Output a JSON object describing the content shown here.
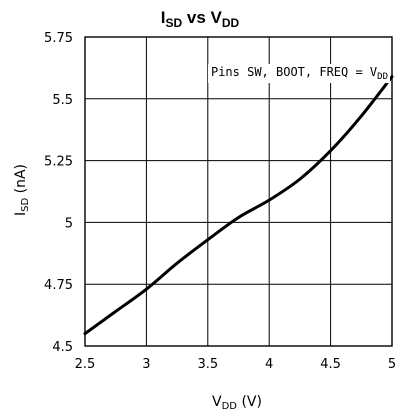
{
  "chart_data": {
    "type": "line",
    "title": {
      "main_1": "I",
      "sub_1": "SD",
      "mid": " vs V",
      "sub_2": "DD"
    },
    "annotation": {
      "text": "Pins SW, BOOT, FREQ = V",
      "sub": "DD"
    },
    "xlabel": {
      "main": "V",
      "sub": "DD",
      "unit": " (V)"
    },
    "ylabel": {
      "main": "I",
      "sub": "SD",
      "unit": " (nA)"
    },
    "xlim": [
      2.5,
      5
    ],
    "ylim": [
      4.5,
      5.75
    ],
    "x_ticks": [
      2.5,
      3,
      3.5,
      4,
      4.5,
      5
    ],
    "x_tick_labels": [
      "2.5",
      "3",
      "3.5",
      "4",
      "4.5",
      "5"
    ],
    "y_ticks": [
      4.5,
      4.75,
      5,
      5.25,
      5.5,
      5.75
    ],
    "y_tick_labels": [
      "4.5",
      "4.75",
      "5",
      "5.25",
      "5.5",
      "5.75"
    ],
    "grid": true,
    "series": [
      {
        "x": [
          2.5,
          2.75,
          3.0,
          3.25,
          3.5,
          3.75,
          4.0,
          4.25,
          4.5,
          4.75,
          5.0
        ],
        "y": [
          4.55,
          4.64,
          4.73,
          4.835,
          4.93,
          5.02,
          5.09,
          5.175,
          5.29,
          5.43,
          5.59
        ]
      }
    ]
  }
}
